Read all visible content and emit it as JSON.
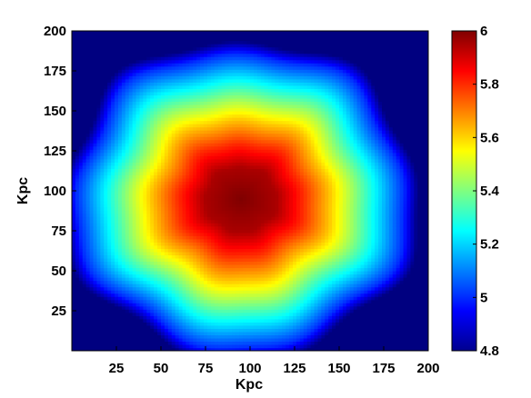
{
  "chart_data": {
    "type": "heatmap",
    "title": "",
    "xlabel": "Kpc",
    "ylabel": "Kpc",
    "xlim": [
      0,
      200
    ],
    "ylim": [
      0,
      200
    ],
    "x_ticks": [
      "25",
      "50",
      "75",
      "100",
      "125",
      "150",
      "175",
      "200"
    ],
    "x_tick_values": [
      25,
      50,
      75,
      100,
      125,
      150,
      175,
      200
    ],
    "y_ticks": [
      "25",
      "50",
      "75",
      "100",
      "125",
      "150",
      "175",
      "200"
    ],
    "y_tick_values": [
      25,
      50,
      75,
      100,
      125,
      150,
      175,
      200
    ],
    "colorbar": {
      "min": 4.8,
      "max": 6,
      "ticks": [
        "4.8",
        "5",
        "5.2",
        "5.4",
        "5.6",
        "5.8",
        "6"
      ],
      "tick_values": [
        4.8,
        5.0,
        5.2,
        5.4,
        5.6,
        5.8,
        6.0
      ],
      "colormap": "jet"
    },
    "field": {
      "description_center_kpc": [
        95,
        95
      ],
      "peak_value": 6.0,
      "background_value": 4.8,
      "radial_profile": [
        {
          "r": 0,
          "value": 6.0
        },
        {
          "r": 20,
          "value": 5.95
        },
        {
          "r": 35,
          "value": 5.8
        },
        {
          "r": 50,
          "value": 5.62
        },
        {
          "r": 62,
          "value": 5.45
        },
        {
          "r": 72,
          "value": 5.3
        },
        {
          "r": 82,
          "value": 5.15
        },
        {
          "r": 92,
          "value": 5.0
        },
        {
          "r": 100,
          "value": 4.8
        }
      ]
    },
    "grid": false,
    "colors": {
      "background": "#ffffff",
      "axes": "#000000"
    }
  }
}
